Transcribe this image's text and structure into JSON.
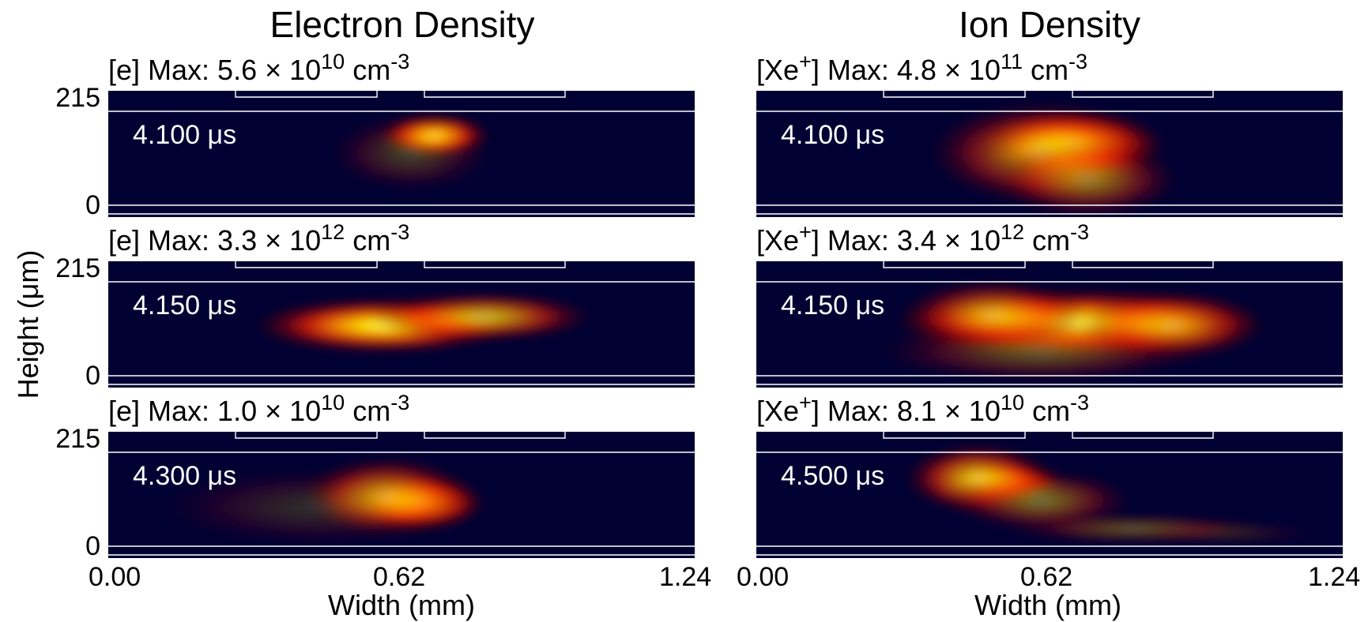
{
  "figure": {
    "col_titles": [
      "Electron Density",
      "Ion Density"
    ],
    "ylabel": "Height (μm)",
    "xlabel": "Width (mm)",
    "yticks": [
      "215",
      "0"
    ],
    "xticks": [
      "0.00",
      "0.62",
      "1.24"
    ],
    "colors": {
      "background": "#000033",
      "hot": [
        "#000033",
        "#550000",
        "#cc0000",
        "#ff3300",
        "#ff8800",
        "#ffcc00",
        "#ffff55"
      ],
      "lines": "#ffffff"
    }
  },
  "chart_data": [
    {
      "type": "heatmap",
      "column": "Electron Density",
      "species": "[e]",
      "max_mantissa": "5.6",
      "max_exponent": "10",
      "unit": "cm",
      "unit_exponent": "-3",
      "time": "4.100 μs",
      "xlim": [
        0,
        1.24
      ],
      "ylim": [
        0,
        215
      ],
      "blobs": [
        {
          "x": 0.69,
          "y": 160,
          "sx": 0.06,
          "sy": 25,
          "intensity": 1.0
        },
        {
          "x": 0.64,
          "y": 120,
          "sx": 0.09,
          "sy": 45,
          "intensity": 0.25
        }
      ]
    },
    {
      "type": "heatmap",
      "column": "Ion Density",
      "species": "[Xe+]",
      "max_mantissa": "4.8",
      "max_exponent": "11",
      "unit": "cm",
      "unit_exponent": "-3",
      "time": "4.100 μs",
      "xlim": [
        0,
        1.24
      ],
      "ylim": [
        0,
        215
      ],
      "blobs": [
        {
          "x": 0.67,
          "y": 140,
          "sx": 0.1,
          "sy": 40,
          "intensity": 1.0
        },
        {
          "x": 0.6,
          "y": 120,
          "sx": 0.12,
          "sy": 60,
          "intensity": 0.6
        },
        {
          "x": 0.7,
          "y": 60,
          "sx": 0.1,
          "sy": 45,
          "intensity": 0.5
        }
      ]
    },
    {
      "type": "heatmap",
      "column": "Electron Density",
      "species": "[e]",
      "max_mantissa": "3.3",
      "max_exponent": "12",
      "unit": "cm",
      "unit_exponent": "-3",
      "time": "4.150 μs",
      "xlim": [
        0,
        1.24
      ],
      "ylim": [
        0,
        215
      ],
      "blobs": [
        {
          "x": 0.58,
          "y": 115,
          "sx": 0.14,
          "sy": 32,
          "intensity": 1.0
        },
        {
          "x": 0.79,
          "y": 135,
          "sx": 0.12,
          "sy": 28,
          "intensity": 0.75
        }
      ]
    },
    {
      "type": "heatmap",
      "column": "Ion Density",
      "species": "[Xe+]",
      "max_mantissa": "3.4",
      "max_exponent": "12",
      "unit": "cm",
      "unit_exponent": "-3",
      "time": "4.150 μs",
      "xlim": [
        0,
        1.24
      ],
      "ylim": [
        0,
        215
      ],
      "blobs": [
        {
          "x": 0.68,
          "y": 120,
          "sx": 0.2,
          "sy": 40,
          "intensity": 1.0
        },
        {
          "x": 0.5,
          "y": 140,
          "sx": 0.1,
          "sy": 40,
          "intensity": 0.65
        },
        {
          "x": 0.88,
          "y": 115,
          "sx": 0.1,
          "sy": 40,
          "intensity": 0.6
        },
        {
          "x": 0.6,
          "y": 55,
          "sx": 0.18,
          "sy": 35,
          "intensity": 0.35
        }
      ]
    },
    {
      "type": "heatmap",
      "column": "Electron Density",
      "species": "[e]",
      "max_mantissa": "1.0",
      "max_exponent": "10",
      "unit": "cm",
      "unit_exponent": "-3",
      "time": "4.300 μs",
      "xlim": [
        0,
        1.24
      ],
      "ylim": [
        0,
        215
      ],
      "blobs": [
        {
          "x": 0.66,
          "y": 100,
          "sx": 0.07,
          "sy": 32,
          "intensity": 1.0
        },
        {
          "x": 0.59,
          "y": 115,
          "sx": 0.09,
          "sy": 45,
          "intensity": 0.7
        },
        {
          "x": 0.45,
          "y": 90,
          "sx": 0.18,
          "sy": 45,
          "intensity": 0.18
        }
      ]
    },
    {
      "type": "heatmap",
      "column": "Ion Density",
      "species": "[Xe+]",
      "max_mantissa": "8.1",
      "max_exponent": "10",
      "unit": "cm",
      "unit_exponent": "-3",
      "time": "4.500 μs",
      "xlim": [
        0,
        1.24
      ],
      "ylim": [
        0,
        215
      ],
      "blobs": [
        {
          "x": 0.53,
          "y": 150,
          "sx": 0.06,
          "sy": 20,
          "intensity": 1.0
        },
        {
          "x": 0.47,
          "y": 155,
          "sx": 0.08,
          "sy": 40,
          "intensity": 0.8
        },
        {
          "x": 0.6,
          "y": 105,
          "sx": 0.1,
          "sy": 35,
          "intensity": 0.45
        },
        {
          "x": 0.8,
          "y": 40,
          "sx": 0.14,
          "sy": 16,
          "intensity": 0.35
        },
        {
          "x": 1.0,
          "y": 30,
          "sx": 0.1,
          "sy": 12,
          "intensity": 0.15
        }
      ]
    }
  ]
}
